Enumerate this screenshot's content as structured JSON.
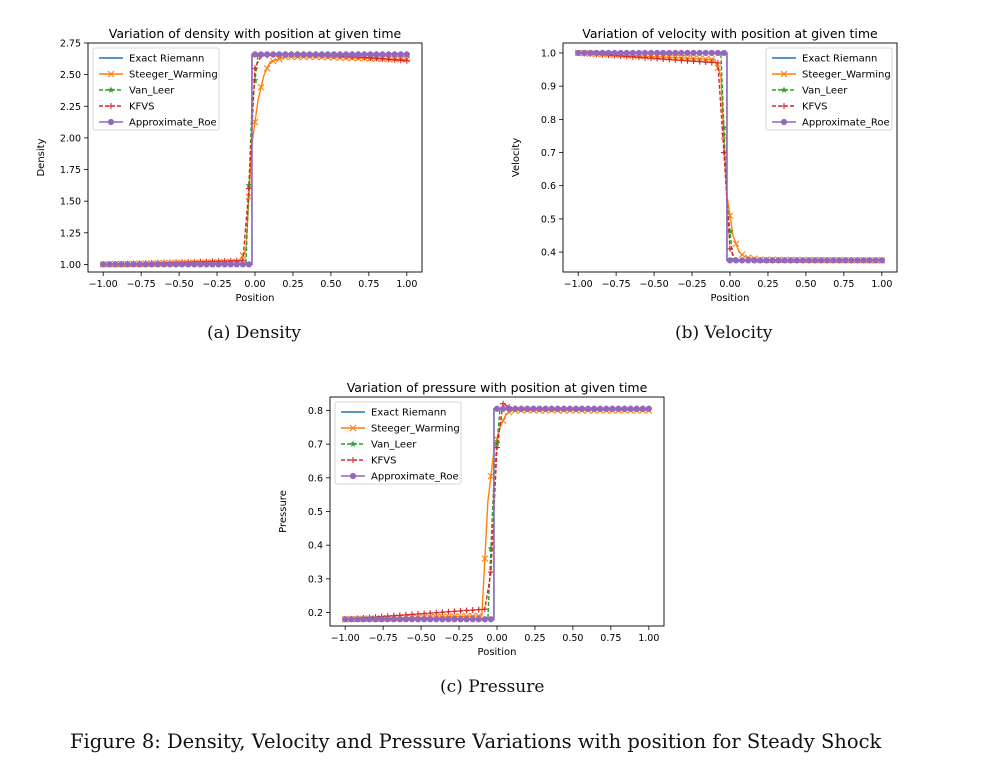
{
  "figure_caption": "Figure 8: Density, Velocity and Pressure Variations with position for Steady Shock",
  "colors": {
    "Exact Riemann": "#1f77b4",
    "Steeger_Warming": "#ff7f0e",
    "Van_Leer": "#2ca02c",
    "KFVS": "#d62728",
    "Approximate_Roe": "#9467bd"
  },
  "chart_data": [
    {
      "type": "line",
      "caption": "(a) Density",
      "title": "Variation of density with position at given time",
      "xlabel": "Position",
      "ylabel": "Density",
      "xlim": [
        -1.1,
        1.1
      ],
      "ylim": [
        0.94,
        2.75
      ],
      "xticks": [
        -1.0,
        -0.75,
        -0.5,
        -0.25,
        0.0,
        0.25,
        0.5,
        0.75,
        1.0
      ],
      "xtick_labels": [
        "−1.00",
        "−0.75",
        "−0.50",
        "−0.25",
        "0.00",
        "0.25",
        "0.50",
        "0.75",
        "1.00"
      ],
      "yticks": [
        1.0,
        1.25,
        1.5,
        1.75,
        2.0,
        2.25,
        2.5,
        2.75
      ],
      "ytick_labels": [
        "1.00",
        "1.25",
        "1.50",
        "1.75",
        "2.00",
        "2.25",
        "2.50",
        "2.75"
      ],
      "legend_loc": "upper-left",
      "grid": false,
      "series": [
        {
          "name": "Exact Riemann",
          "x": [
            -1.0,
            -0.02,
            -0.02,
            1.0
          ],
          "y": [
            1.0,
            1.0,
            2.66,
            2.66
          ]
        },
        {
          "name": "Steeger_Warming",
          "x": [
            -1.0,
            -0.1,
            -0.06,
            -0.02,
            0.02,
            0.06,
            0.1,
            0.2,
            0.4,
            0.7,
            1.0
          ],
          "y": [
            1.0,
            1.02,
            1.12,
            1.95,
            2.3,
            2.5,
            2.6,
            2.64,
            2.64,
            2.63,
            2.62
          ]
        },
        {
          "name": "Van_Leer",
          "x": [
            -1.0,
            -0.06,
            -0.02,
            0.02,
            1.0
          ],
          "y": [
            1.0,
            1.0,
            2.25,
            2.66,
            2.66
          ]
        },
        {
          "name": "KFVS",
          "x": [
            -1.0,
            -0.08,
            -0.04,
            0.0,
            0.04,
            0.2,
            0.5,
            0.8,
            1.0
          ],
          "y": [
            1.0,
            1.03,
            1.6,
            2.55,
            2.65,
            2.66,
            2.65,
            2.63,
            2.61
          ]
        },
        {
          "name": "Approximate_Roe",
          "x": [
            -1.0,
            -0.02,
            -0.02,
            1.0
          ],
          "y": [
            1.0,
            1.0,
            2.66,
            2.66
          ]
        }
      ]
    },
    {
      "type": "line",
      "caption": "(b) Velocity",
      "title": "Variation of velocity with position at given time",
      "xlabel": "Position",
      "ylabel": "Velocity",
      "xlim": [
        -1.1,
        1.1
      ],
      "ylim": [
        0.34,
        1.03
      ],
      "xticks": [
        -1.0,
        -0.75,
        -0.5,
        -0.25,
        0.0,
        0.25,
        0.5,
        0.75,
        1.0
      ],
      "xtick_labels": [
        "−1.00",
        "−0.75",
        "−0.50",
        "−0.25",
        "0.00",
        "0.25",
        "0.50",
        "0.75",
        "1.00"
      ],
      "yticks": [
        0.4,
        0.5,
        0.6,
        0.7,
        0.8,
        0.9,
        1.0
      ],
      "ytick_labels": [
        "0.4",
        "0.5",
        "0.6",
        "0.7",
        "0.8",
        "0.9",
        "1.0"
      ],
      "legend_loc": "upper-right",
      "grid": false,
      "series": [
        {
          "name": "Exact Riemann",
          "x": [
            -1.0,
            -0.02,
            -0.02,
            1.0
          ],
          "y": [
            1.0,
            1.0,
            0.375,
            0.375
          ]
        },
        {
          "name": "Steeger_Warming",
          "x": [
            -1.0,
            -0.1,
            -0.06,
            -0.02,
            0.02,
            0.06,
            0.1,
            0.2,
            1.0
          ],
          "y": [
            1.0,
            0.98,
            0.93,
            0.57,
            0.45,
            0.4,
            0.385,
            0.377,
            0.375
          ]
        },
        {
          "name": "Van_Leer",
          "x": [
            -1.0,
            -0.06,
            -0.02,
            0.02,
            1.0
          ],
          "y": [
            1.0,
            1.0,
            0.55,
            0.375,
            0.375
          ]
        },
        {
          "name": "KFVS",
          "x": [
            -1.0,
            -0.08,
            -0.04,
            0.0,
            0.04,
            0.1,
            1.0
          ],
          "y": [
            1.0,
            0.97,
            0.7,
            0.41,
            0.375,
            0.375,
            0.375
          ]
        },
        {
          "name": "Approximate_Roe",
          "x": [
            -1.0,
            -0.02,
            -0.02,
            1.0
          ],
          "y": [
            1.0,
            1.0,
            0.375,
            0.375
          ]
        }
      ]
    },
    {
      "type": "line",
      "caption": "(c) Pressure",
      "title": "Variation of pressure with position at given time",
      "xlabel": "Position",
      "ylabel": "Pressure",
      "xlim": [
        -1.1,
        1.1
      ],
      "ylim": [
        0.16,
        0.84
      ],
      "xticks": [
        -1.0,
        -0.75,
        -0.5,
        -0.25,
        0.0,
        0.25,
        0.5,
        0.75,
        1.0
      ],
      "xtick_labels": [
        "−1.00",
        "−0.75",
        "−0.50",
        "−0.25",
        "0.00",
        "0.25",
        "0.50",
        "0.75",
        "1.00"
      ],
      "yticks": [
        0.2,
        0.3,
        0.4,
        0.5,
        0.6,
        0.7,
        0.8
      ],
      "ytick_labels": [
        "0.2",
        "0.3",
        "0.4",
        "0.5",
        "0.6",
        "0.7",
        "0.8"
      ],
      "legend_loc": "upper-left",
      "grid": false,
      "series": [
        {
          "name": "Exact Riemann",
          "x": [
            -1.0,
            -0.02,
            -0.02,
            1.0
          ],
          "y": [
            0.18,
            0.18,
            0.805,
            0.805
          ]
        },
        {
          "name": "Steeger_Warming",
          "x": [
            -1.0,
            -0.1,
            -0.06,
            -0.02,
            0.02,
            0.06,
            0.1,
            0.2,
            1.0
          ],
          "y": [
            0.18,
            0.19,
            0.53,
            0.68,
            0.75,
            0.79,
            0.8,
            0.8,
            0.8
          ]
        },
        {
          "name": "Van_Leer",
          "x": [
            -1.0,
            -0.06,
            -0.02,
            0.02,
            1.0
          ],
          "y": [
            0.18,
            0.18,
            0.6,
            0.805,
            0.805
          ]
        },
        {
          "name": "KFVS",
          "x": [
            -1.0,
            -0.08,
            -0.04,
            0.0,
            0.04,
            0.1,
            1.0
          ],
          "y": [
            0.18,
            0.21,
            0.32,
            0.69,
            0.82,
            0.805,
            0.805
          ]
        },
        {
          "name": "Approximate_Roe",
          "x": [
            -1.0,
            -0.02,
            -0.02,
            1.0
          ],
          "y": [
            0.18,
            0.18,
            0.805,
            0.805
          ]
        }
      ]
    }
  ]
}
